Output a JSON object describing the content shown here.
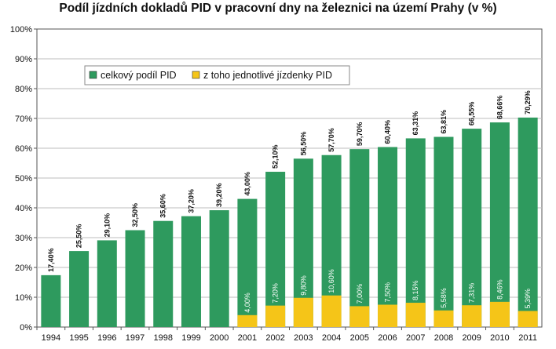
{
  "chart_data": {
    "type": "bar",
    "title": "Podíl jízdních dokladů PID v pracovní dny na železnici na území Prahy (v %)",
    "categories": [
      "1994",
      "1995",
      "1996",
      "1997",
      "1998",
      "1999",
      "2000",
      "2001",
      "2002",
      "2003",
      "2004",
      "2005",
      "2006",
      "2007",
      "2008",
      "2009",
      "2010",
      "2011"
    ],
    "series": [
      {
        "name": "celkový podíl PID",
        "color": "#2e9a5e",
        "values": [
          17.4,
          25.5,
          29.1,
          32.5,
          35.6,
          37.2,
          39.2,
          43.0,
          52.1,
          56.5,
          57.7,
          59.7,
          60.4,
          63.31,
          63.81,
          66.55,
          68.66,
          70.29
        ],
        "labels": [
          "17,40%",
          "25,50%",
          "29,10%",
          "32,50%",
          "35,60%",
          "37,20%",
          "39,20%",
          "43,00%",
          "52,10%",
          "56,50%",
          "57,70%",
          "59,70%",
          "60,40%",
          "63,31%",
          "63,81%",
          "66,55%",
          "68,66%",
          "70,29%"
        ]
      },
      {
        "name": "z toho jednotlivé jízdenky PID",
        "color": "#f5c518",
        "values": [
          null,
          null,
          null,
          null,
          null,
          null,
          null,
          4.0,
          7.2,
          9.8,
          10.6,
          7.0,
          7.5,
          8.15,
          5.58,
          7.31,
          8.46,
          5.39
        ],
        "labels": [
          null,
          null,
          null,
          null,
          null,
          null,
          null,
          "4,00%",
          "7,20%",
          "9,80%",
          "10,60%",
          "7,00%",
          "7,50%",
          "8,15%",
          "5,58%",
          "7,31%",
          "8,46%",
          "5,39%"
        ]
      }
    ],
    "y_ticks": [
      "0%",
      "10%",
      "20%",
      "30%",
      "40%",
      "50%",
      "60%",
      "70%",
      "80%",
      "90%",
      "100%"
    ],
    "ylim": [
      0,
      100
    ],
    "grid": true,
    "legend_position": "upper-left"
  }
}
